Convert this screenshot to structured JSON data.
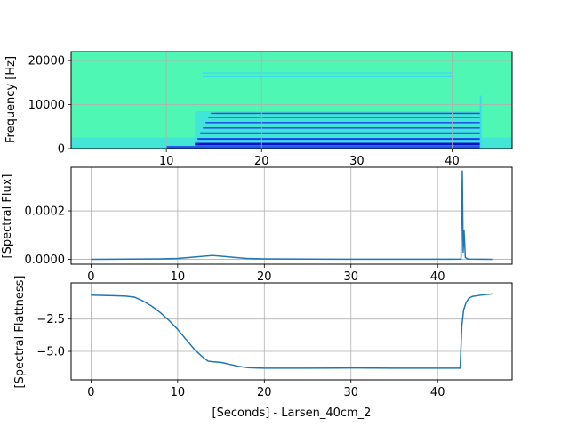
{
  "chart_data": [
    {
      "type": "heatmap",
      "title": "",
      "xlabel": "",
      "ylabel": "Frequency [Hz]",
      "xlim": [
        0,
        46.3
      ],
      "ylim": [
        0,
        22050
      ],
      "xticks": [
        10,
        20,
        30,
        40
      ],
      "yticks": [
        0,
        10000,
        20000
      ],
      "grid": true,
      "colormap": "jet",
      "colors": {
        "background": "#4ef7b4",
        "energy_low": "#3ad8f2",
        "energy_high": "#1b3fe6",
        "peak": "#0a10c8"
      },
      "harmonics_hz": [
        1000,
        2200,
        3500,
        4700,
        5900,
        7100,
        8000
      ],
      "high_band_hz": [
        16500,
        17200
      ],
      "tone_start_s": 13,
      "tone_end_s": 43
    },
    {
      "type": "line",
      "title": "",
      "xlabel": "",
      "ylabel": "[Spectral Flux]",
      "xlim": [
        -2.3,
        48.6
      ],
      "ylim": [
        -2e-05,
        0.00038
      ],
      "xticks": [
        0,
        10,
        20,
        30,
        40
      ],
      "yticks": [
        0.0,
        0.0002
      ],
      "ytick_labels": [
        "0.0000",
        "0.0002"
      ],
      "grid": true,
      "series": [
        {
          "color": "#1f77b4",
          "x": [
            0,
            8,
            10,
            12,
            14,
            16,
            18,
            20,
            25,
            30,
            40,
            42.7,
            42.85,
            42.95,
            43.05,
            43.2,
            43.5,
            46.3
          ],
          "y": [
            0.0,
            2e-06,
            4e-06,
            1e-05,
            1.6e-05,
            1e-05,
            4e-06,
            2e-06,
            1e-06,
            5e-07,
            5e-07,
            1e-06,
            0.000365,
            3e-05,
            0.00012,
            8e-06,
            1e-06,
            0.0
          ]
        }
      ]
    },
    {
      "type": "line",
      "title": "",
      "xlabel": "[Seconds] - Larsen_40cm_2",
      "ylabel": "[Spectral Flattness]",
      "xlim": [
        -2.3,
        48.6
      ],
      "ylim": [
        -7.2,
        0.3
      ],
      "xticks": [
        0,
        10,
        20,
        30,
        40
      ],
      "yticks": [
        -2.5,
        -5.0
      ],
      "ytick_labels": [
        "−2.5",
        "−5.0"
      ],
      "grid": true,
      "series": [
        {
          "color": "#1f77b4",
          "x": [
            0,
            2,
            4,
            5,
            6,
            7,
            8,
            9,
            10,
            11,
            12,
            13,
            13.5,
            14,
            15,
            16,
            17,
            18,
            19,
            20,
            25,
            30,
            35,
            40,
            42.6,
            42.8,
            43.0,
            43.3,
            43.6,
            44,
            45,
            46.3
          ],
          "y": [
            -0.65,
            -0.68,
            -0.72,
            -0.8,
            -1.1,
            -1.5,
            -2.0,
            -2.6,
            -3.3,
            -4.1,
            -4.9,
            -5.5,
            -5.75,
            -5.8,
            -5.85,
            -6.0,
            -6.15,
            -6.25,
            -6.28,
            -6.3,
            -6.3,
            -6.28,
            -6.3,
            -6.3,
            -6.3,
            -3.0,
            -1.8,
            -1.2,
            -0.9,
            -0.75,
            -0.65,
            -0.55
          ]
        }
      ]
    }
  ]
}
